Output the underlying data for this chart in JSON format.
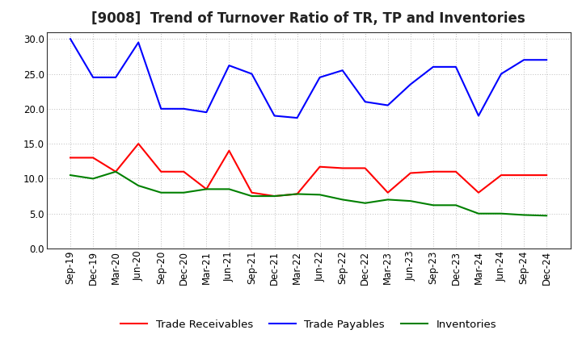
{
  "title": "[9008]  Trend of Turnover Ratio of TR, TP and Inventories",
  "x_labels": [
    "Sep-19",
    "Dec-19",
    "Mar-20",
    "Jun-20",
    "Sep-20",
    "Dec-20",
    "Mar-21",
    "Jun-21",
    "Sep-21",
    "Dec-21",
    "Mar-22",
    "Jun-22",
    "Sep-22",
    "Dec-22",
    "Mar-23",
    "Jun-23",
    "Sep-23",
    "Dec-23",
    "Mar-24",
    "Jun-24",
    "Sep-24",
    "Dec-24"
  ],
  "trade_receivables": [
    13.0,
    13.0,
    11.0,
    15.0,
    11.0,
    11.0,
    8.5,
    14.0,
    8.0,
    7.5,
    7.8,
    11.7,
    11.5,
    11.5,
    8.0,
    10.8,
    11.0,
    11.0,
    8.0,
    10.5,
    10.5,
    10.5
  ],
  "trade_payables": [
    30.0,
    24.5,
    24.5,
    29.5,
    20.0,
    20.0,
    19.5,
    26.2,
    25.0,
    19.0,
    18.7,
    24.5,
    25.5,
    21.0,
    20.5,
    23.5,
    26.0,
    26.0,
    19.0,
    25.0,
    27.0,
    27.0
  ],
  "inventories": [
    10.5,
    10.0,
    11.0,
    9.0,
    8.0,
    8.0,
    8.5,
    8.5,
    7.5,
    7.5,
    7.8,
    7.7,
    7.0,
    6.5,
    7.0,
    6.8,
    6.2,
    6.2,
    5.0,
    5.0,
    4.8,
    4.7
  ],
  "tr_color": "#ff0000",
  "tp_color": "#0000ff",
  "inv_color": "#008000",
  "ylim": [
    0,
    31
  ],
  "yticks": [
    0.0,
    5.0,
    10.0,
    15.0,
    20.0,
    25.0,
    30.0
  ],
  "legend_labels": [
    "Trade Receivables",
    "Trade Payables",
    "Inventories"
  ],
  "grid_color": "#bbbbbb",
  "background_color": "#ffffff",
  "title_fontsize": 12,
  "tick_fontsize": 8.5,
  "legend_fontsize": 9.5
}
